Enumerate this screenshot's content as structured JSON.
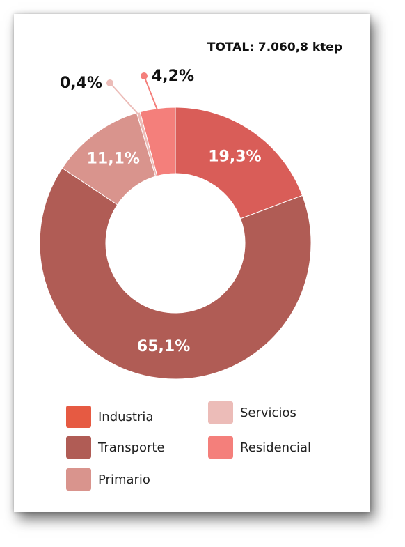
{
  "chart_data": {
    "type": "pie",
    "title": "TOTAL: 7.060,8 ktep",
    "categories": [
      "Industria",
      "Transporte",
      "Primario",
      "Servicios",
      "Residencial"
    ],
    "values": [
      19.3,
      65.1,
      11.1,
      0.4,
      4.2
    ],
    "labels": [
      "19,3%",
      "65,1%",
      "11,1%",
      "0,4%",
      "4,2%"
    ],
    "colors": [
      "#d95d58",
      "#b05c55",
      "#d9948d",
      "#ecbcb8",
      "#f47f7b"
    ],
    "legend_colors": [
      "#e65a42",
      "#b05c55",
      "#d9948d",
      "#ecbcb8",
      "#f47f7b"
    ],
    "donut": true,
    "legend": "bottom"
  }
}
